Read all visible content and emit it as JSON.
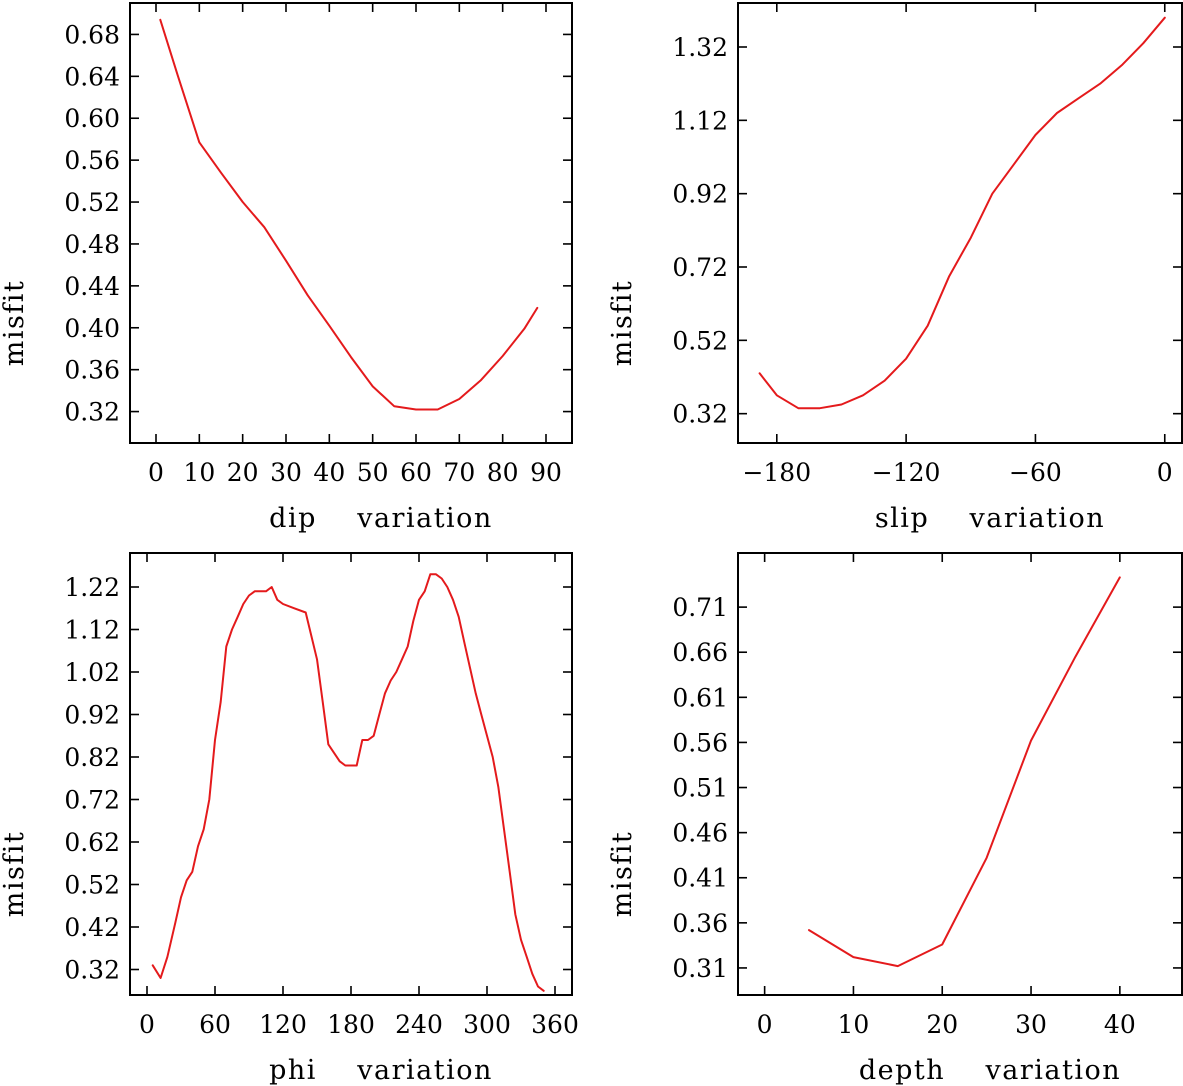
{
  "colors": {
    "line": "#e41a1c",
    "axes": "#000000",
    "background": "#ffffff"
  },
  "chart_data": [
    {
      "type": "line",
      "xlabel": "dip    variation",
      "ylabel": "misfit",
      "xlim": [
        -6,
        96
      ],
      "ylim": [
        0.29,
        0.71
      ],
      "xticks": [
        0,
        10,
        20,
        30,
        40,
        50,
        60,
        70,
        80,
        90
      ],
      "xtick_labels": [
        "0",
        "10",
        "20",
        "30",
        "40",
        "50",
        "60",
        "70",
        "80",
        "90"
      ],
      "yticks": [
        0.32,
        0.36,
        0.4,
        0.44,
        0.48,
        0.52,
        0.56,
        0.6,
        0.64,
        0.68
      ],
      "ytick_labels": [
        "0.32",
        "0.36",
        "0.40",
        "0.44",
        "0.48",
        "0.52",
        "0.56",
        "0.60",
        "0.64",
        "0.68"
      ],
      "grid": false,
      "legend": "none",
      "series": [
        {
          "x": [
            1,
            5,
            10,
            15,
            20,
            25,
            30,
            35,
            40,
            45,
            50,
            55,
            60,
            65,
            70,
            75,
            80,
            85,
            88
          ],
          "y": [
            0.694,
            0.641,
            0.577,
            0.548,
            0.52,
            0.496,
            0.464,
            0.431,
            0.402,
            0.372,
            0.344,
            0.325,
            0.322,
            0.322,
            0.332,
            0.35,
            0.373,
            0.399,
            0.419
          ]
        }
      ]
    },
    {
      "type": "line",
      "xlabel": "slip    variation",
      "ylabel": "misfit",
      "xlim": [
        -198,
        8
      ],
      "ylim": [
        0.24,
        1.44
      ],
      "xticks": [
        -180,
        -120,
        -60,
        0
      ],
      "xtick_labels": [
        "−180",
        "−120",
        "−60",
        "0"
      ],
      "yticks": [
        0.32,
        0.52,
        0.72,
        0.92,
        1.12,
        1.32
      ],
      "ytick_labels": [
        "0.32",
        "0.52",
        "0.72",
        "0.92",
        "1.12",
        "1.32"
      ],
      "grid": false,
      "legend": "none",
      "series": [
        {
          "x": [
            -188,
            -180,
            -170,
            -160,
            -150,
            -140,
            -130,
            -120,
            -110,
            -100,
            -90,
            -80,
            -70,
            -60,
            -50,
            -40,
            -30,
            -20,
            -10,
            0
          ],
          "y": [
            0.43,
            0.37,
            0.335,
            0.335,
            0.345,
            0.37,
            0.41,
            0.47,
            0.56,
            0.695,
            0.8,
            0.92,
            1.0,
            1.08,
            1.14,
            1.18,
            1.22,
            1.27,
            1.33,
            1.4
          ]
        }
      ]
    },
    {
      "type": "line",
      "xlabel": "phi    variation",
      "ylabel": "misfit",
      "xlim": [
        -15,
        375
      ],
      "ylim": [
        0.26,
        1.3
      ],
      "xticks": [
        0,
        60,
        120,
        180,
        240,
        300,
        360
      ],
      "xtick_labels": [
        "0",
        "60",
        "120",
        "180",
        "240",
        "300",
        "360"
      ],
      "yticks": [
        0.32,
        0.42,
        0.52,
        0.62,
        0.72,
        0.82,
        0.92,
        1.02,
        1.12,
        1.22
      ],
      "ytick_labels": [
        "0.32",
        "0.42",
        "0.52",
        "0.62",
        "0.72",
        "0.82",
        "0.92",
        "1.02",
        "1.12",
        "1.22"
      ],
      "grid": false,
      "legend": "none",
      "series": [
        {
          "x": [
            5,
            12,
            18,
            25,
            30,
            35,
            40,
            45,
            50,
            55,
            60,
            65,
            70,
            75,
            80,
            85,
            90,
            95,
            100,
            105,
            110,
            115,
            120,
            130,
            140,
            150,
            155,
            160,
            165,
            170,
            175,
            180,
            185,
            190,
            195,
            200,
            205,
            210,
            215,
            220,
            225,
            230,
            235,
            240,
            245,
            250,
            255,
            260,
            265,
            270,
            275,
            280,
            285,
            290,
            295,
            300,
            305,
            310,
            315,
            320,
            325,
            330,
            335,
            340,
            345,
            350
          ],
          "y": [
            0.33,
            0.3,
            0.35,
            0.43,
            0.49,
            0.53,
            0.55,
            0.61,
            0.65,
            0.72,
            0.86,
            0.95,
            1.08,
            1.12,
            1.15,
            1.18,
            1.2,
            1.21,
            1.21,
            1.21,
            1.22,
            1.19,
            1.18,
            1.17,
            1.16,
            1.05,
            0.95,
            0.85,
            0.83,
            0.81,
            0.8,
            0.8,
            0.8,
            0.86,
            0.86,
            0.87,
            0.92,
            0.97,
            1.0,
            1.02,
            1.05,
            1.08,
            1.14,
            1.19,
            1.21,
            1.25,
            1.25,
            1.24,
            1.22,
            1.19,
            1.15,
            1.09,
            1.03,
            0.97,
            0.92,
            0.87,
            0.82,
            0.75,
            0.65,
            0.55,
            0.45,
            0.39,
            0.35,
            0.31,
            0.28,
            0.27
          ]
        }
      ]
    },
    {
      "type": "line",
      "xlabel": "depth    variation",
      "ylabel": "misfit",
      "xlim": [
        -3,
        47
      ],
      "ylim": [
        0.28,
        0.77
      ],
      "xticks": [
        0,
        10,
        20,
        30,
        40
      ],
      "xtick_labels": [
        "0",
        "10",
        "20",
        "30",
        "40"
      ],
      "yticks": [
        0.31,
        0.36,
        0.41,
        0.46,
        0.51,
        0.56,
        0.61,
        0.66,
        0.71
      ],
      "ytick_labels": [
        "0.31",
        "0.36",
        "0.41",
        "0.46",
        "0.51",
        "0.56",
        "0.61",
        "0.66",
        "0.71"
      ],
      "grid": false,
      "legend": "none",
      "series": [
        {
          "x": [
            5,
            10,
            15,
            20,
            25,
            30,
            35,
            40
          ],
          "y": [
            0.352,
            0.322,
            0.312,
            0.336,
            0.432,
            0.562,
            0.655,
            0.743
          ]
        }
      ]
    }
  ]
}
